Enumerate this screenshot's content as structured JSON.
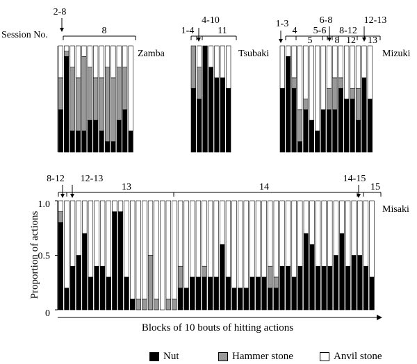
{
  "colors": {
    "nut": "#000000",
    "hammer": "#999999",
    "anvil": "#ffffff",
    "stroke": "#000000"
  },
  "legend": {
    "nut": "Nut",
    "hammer": "Hammer stone",
    "anvil": "Anvil stone"
  },
  "chart_data": [
    {
      "type": "bar",
      "stacked": true,
      "name": "Zamba",
      "session_label": "Session No.",
      "sessions": [
        "2-8",
        "8"
      ],
      "series": [
        {
          "name": "Nut",
          "values": [
            0.4,
            0.9,
            0.2,
            0.2,
            0.2,
            0.3,
            0.3,
            0.2,
            0.1,
            0.1,
            0.3,
            0.4,
            0.2
          ]
        },
        {
          "name": "Hammer stone",
          "values": [
            0.3,
            0.05,
            0.6,
            0.5,
            0.7,
            0.5,
            0.4,
            0.5,
            0.7,
            0.6,
            0.5,
            0.4,
            0.0
          ]
        },
        {
          "name": "Anvil stone",
          "values": [
            0.3,
            0.05,
            0.2,
            0.3,
            0.1,
            0.2,
            0.3,
            0.3,
            0.2,
            0.3,
            0.2,
            0.2,
            0.8
          ]
        }
      ]
    },
    {
      "type": "bar",
      "stacked": true,
      "name": "Tsubaki",
      "sessions": [
        "1-4",
        "4-10",
        "11"
      ],
      "series": [
        {
          "name": "Nut",
          "values": [
            0.6,
            0.5,
            1.0,
            0.8,
            0.7,
            0.7,
            0.6
          ]
        },
        {
          "name": "Hammer stone",
          "values": [
            0.4,
            0.3,
            0.0,
            0.0,
            0.0,
            0.0,
            0.0
          ]
        },
        {
          "name": "Anvil stone",
          "values": [
            0.0,
            0.2,
            0.0,
            0.2,
            0.3,
            0.3,
            0.4
          ]
        }
      ]
    },
    {
      "type": "bar",
      "stacked": true,
      "name": "Mizuki",
      "sessions": [
        "1-3",
        "4",
        "5",
        "5-6",
        "6-8",
        "8",
        "8-12",
        "12",
        "12-13",
        "13"
      ],
      "series": [
        {
          "name": "Nut",
          "values": [
            0.6,
            0.9,
            0.6,
            0.1,
            0.4,
            0.3,
            0.2,
            0.4,
            0.4,
            0.4,
            0.6,
            0.5,
            0.5,
            0.3,
            0.7,
            0.5
          ]
        },
        {
          "name": "Hammer stone",
          "values": [
            0.0,
            0.0,
            0.1,
            0.3,
            0.1,
            0.0,
            0.0,
            0.0,
            0.2,
            0.3,
            0.1,
            0.0,
            0.1,
            0.3,
            0.0,
            0.0
          ]
        },
        {
          "name": "Anvil stone",
          "values": [
            0.4,
            0.1,
            0.3,
            0.6,
            0.5,
            0.7,
            0.8,
            0.6,
            0.4,
            0.3,
            0.3,
            0.5,
            0.4,
            0.4,
            0.3,
            0.5
          ]
        }
      ]
    },
    {
      "type": "bar",
      "stacked": true,
      "name": "Misaki",
      "sessions": [
        "8-12",
        "12-13",
        "13",
        "14",
        "14-15",
        "15"
      ],
      "ylabel": "Proportion of actions",
      "xlabel": "Blocks of 10 bouts of hitting actions",
      "yticks": [
        "0",
        "0.5",
        "1.0"
      ],
      "ylim": [
        0,
        1
      ],
      "series": [
        {
          "name": "Nut",
          "values": [
            0.8,
            0.2,
            0.4,
            0.5,
            0.7,
            0.3,
            0.4,
            0.4,
            0.3,
            0.9,
            0.9,
            0.3,
            0.1,
            0.0,
            0.0,
            0.0,
            0.0,
            0.0,
            0.0,
            0.0,
            0.2,
            0.2,
            0.3,
            0.3,
            0.3,
            0.3,
            0.3,
            0.6,
            0.3,
            0.2,
            0.2,
            0.2,
            0.3,
            0.3,
            0.3,
            0.2,
            0.2,
            0.4,
            0.4,
            0.3,
            0.4,
            0.7,
            0.6,
            0.4,
            0.4,
            0.4,
            0.5,
            0.7,
            0.4,
            0.5,
            0.5,
            0.4,
            0.3
          ]
        },
        {
          "name": "Hammer stone",
          "values": [
            0.1,
            0.0,
            0.0,
            0.0,
            0.0,
            0.0,
            0.0,
            0.0,
            0.0,
            0.0,
            0.0,
            0.0,
            0.0,
            0.1,
            0.1,
            0.5,
            0.1,
            0.0,
            0.1,
            0.1,
            0.2,
            0.0,
            0.0,
            0.0,
            0.1,
            0.0,
            0.0,
            0.0,
            0.0,
            0.0,
            0.0,
            0.0,
            0.0,
            0.0,
            0.0,
            0.2,
            0.1,
            0.0,
            0.0,
            0.0,
            0.0,
            0.0,
            0.0,
            0.0,
            0.0,
            0.0,
            0.0,
            0.0,
            0.0,
            0.0,
            0.0,
            0.0,
            0.0
          ]
        },
        {
          "name": "Anvil stone",
          "values": [
            0.1,
            0.8,
            0.6,
            0.5,
            0.3,
            0.7,
            0.6,
            0.6,
            0.7,
            0.1,
            0.1,
            0.7,
            0.9,
            0.9,
            0.9,
            0.5,
            0.9,
            1.0,
            0.9,
            0.9,
            0.6,
            0.8,
            0.7,
            0.7,
            0.6,
            0.7,
            0.7,
            0.4,
            0.7,
            0.8,
            0.8,
            0.8,
            0.7,
            0.7,
            0.7,
            0.6,
            0.7,
            0.6,
            0.6,
            0.7,
            0.6,
            0.3,
            0.4,
            0.6,
            0.6,
            0.6,
            0.5,
            0.3,
            0.6,
            0.5,
            0.5,
            0.6,
            0.7
          ]
        }
      ]
    }
  ]
}
